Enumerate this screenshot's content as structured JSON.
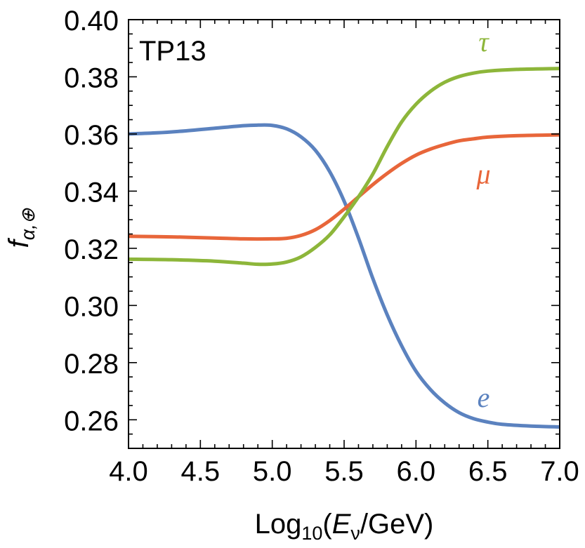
{
  "chart_data": {
    "type": "line",
    "panel_label": "TP13",
    "xlabel": {
      "prefix": "Log",
      "subscript": "10",
      "open": "(",
      "var": "E",
      "var_sub": "ν",
      "suffix": "/GeV)"
    },
    "ylabel": {
      "var": "f",
      "sub": "α,⊕"
    },
    "xlim": [
      4.0,
      7.0
    ],
    "ylim": [
      0.25,
      0.4
    ],
    "xticks": [
      "4.0",
      "4.5",
      "5.0",
      "5.5",
      "6.0",
      "6.5",
      "7.0"
    ],
    "yticks": [
      "0.26",
      "0.28",
      "0.30",
      "0.32",
      "0.34",
      "0.36",
      "0.38",
      "0.40"
    ],
    "series": [
      {
        "name": "e",
        "color": "#5b82bf",
        "x": [
          4.0,
          4.2,
          4.4,
          4.6,
          4.8,
          4.9,
          5.0,
          5.1,
          5.2,
          5.3,
          5.4,
          5.5,
          5.6,
          5.7,
          5.8,
          5.9,
          6.0,
          6.1,
          6.2,
          6.3,
          6.4,
          6.5,
          6.6,
          6.8,
          7.0
        ],
        "y": [
          0.36,
          0.3604,
          0.3611,
          0.362,
          0.3629,
          0.3631,
          0.363,
          0.3618,
          0.359,
          0.3543,
          0.3468,
          0.3365,
          0.3236,
          0.3094,
          0.2967,
          0.2859,
          0.277,
          0.2706,
          0.2659,
          0.2625,
          0.2604,
          0.2592,
          0.2584,
          0.2578,
          0.2575
        ]
      },
      {
        "name": "μ",
        "color": "#e8663a",
        "x": [
          4.0,
          4.3,
          4.6,
          4.8,
          5.0,
          5.1,
          5.2,
          5.3,
          5.4,
          5.5,
          5.6,
          5.7,
          5.8,
          5.9,
          6.0,
          6.1,
          6.2,
          6.3,
          6.4,
          6.5,
          6.7,
          7.0
        ],
        "y": [
          0.3242,
          0.324,
          0.3236,
          0.3233,
          0.3233,
          0.3235,
          0.3245,
          0.3265,
          0.3297,
          0.3337,
          0.338,
          0.3423,
          0.3462,
          0.3497,
          0.3526,
          0.3547,
          0.3563,
          0.3576,
          0.3583,
          0.3589,
          0.3594,
          0.3597
        ]
      },
      {
        "name": "τ",
        "color": "#8db63a",
        "x": [
          4.0,
          4.3,
          4.6,
          4.8,
          4.9,
          5.0,
          5.1,
          5.2,
          5.3,
          5.4,
          5.5,
          5.6,
          5.7,
          5.8,
          5.9,
          6.0,
          6.1,
          6.2,
          6.3,
          6.4,
          6.5,
          6.7,
          7.0
        ],
        "y": [
          0.3162,
          0.316,
          0.3155,
          0.3148,
          0.3144,
          0.3145,
          0.3152,
          0.317,
          0.3203,
          0.3247,
          0.331,
          0.338,
          0.346,
          0.3556,
          0.3642,
          0.3704,
          0.3749,
          0.3781,
          0.3801,
          0.3813,
          0.382,
          0.3826,
          0.3829
        ]
      }
    ],
    "annotations": [
      {
        "text": "τ",
        "series": "τ",
        "x": 6.47,
        "y": 0.389
      },
      {
        "text": "μ",
        "series": "μ",
        "x": 6.47,
        "y": 0.3427
      },
      {
        "text": "e",
        "series": "e",
        "x": 6.47,
        "y": 0.2645
      }
    ]
  }
}
